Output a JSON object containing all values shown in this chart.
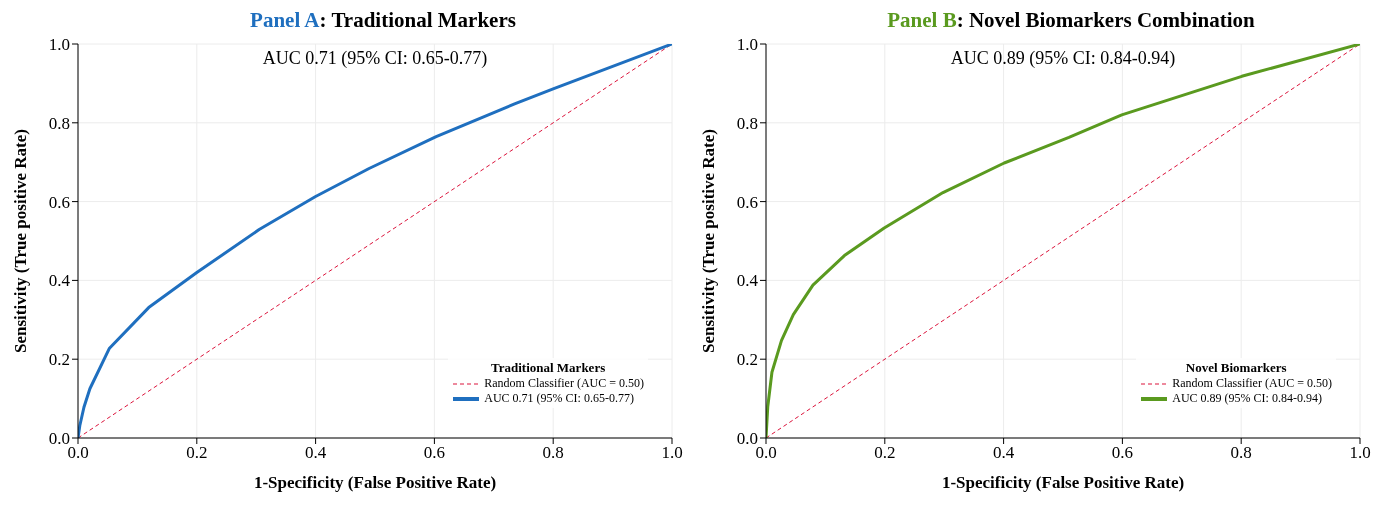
{
  "chart_data": [
    {
      "type": "line",
      "title": "Panel A: Traditional Markers",
      "xlabel": "1-Specificity (False Positive Rate)",
      "ylabel": "Sensitivity (True positive Rate)",
      "legend_title": "Traditional Markers",
      "annotations": [
        "AUC 0.71 (95% CI: 0.65-0.77)"
      ],
      "xlim": [
        0,
        1
      ],
      "ylim": [
        0,
        1
      ],
      "xticks": [
        {
          "value": 0,
          "label": "0.0"
        },
        {
          "value": 0.2,
          "label": "0.2"
        },
        {
          "value": 0.4,
          "label": "0.4"
        },
        {
          "value": 0.6,
          "label": "0.6"
        },
        {
          "value": 0.8,
          "label": "0.8"
        },
        {
          "value": 1,
          "label": "1.0"
        }
      ],
      "yticks": [
        {
          "value": 0,
          "label": "0.0"
        },
        {
          "value": 0.2,
          "label": "0.2"
        },
        {
          "value": 0.4,
          "label": "0.4"
        },
        {
          "value": 0.6,
          "label": "0.6"
        },
        {
          "value": 0.8,
          "label": "0.8"
        },
        {
          "value": 1,
          "label": "1.0"
        }
      ],
      "grid": true,
      "legend": "bottom right",
      "marker": "none",
      "series": [
        {
          "name": "Random Classifier (AUC = 0.50)",
          "color": "#dc143c",
          "line_style": "dashed",
          "x": [
            0,
            1
          ],
          "values": [
            0,
            1
          ]
        },
        {
          "name": "AUC 0.71 (95% CI: 0.65-0.77)",
          "color": "#1f6fbf",
          "line_style": "solid",
          "x": [
            0,
            0.003,
            0.01,
            0.02,
            0.053,
            0.119,
            0.2,
            0.305,
            0.4,
            0.49,
            0.603,
            0.735,
            0.801,
            1
          ],
          "values": [
            0,
            0.031,
            0.078,
            0.125,
            0.228,
            0.331,
            0.42,
            0.529,
            0.613,
            0.684,
            0.765,
            0.848,
            0.887,
            1
          ]
        }
      ]
    },
    {
      "type": "line",
      "title": "Panel B: Novel Biomarkers Combination",
      "xlabel": "1-Specificity (False Positive Rate)",
      "ylabel": "Sensitivity (True positive Rate)",
      "legend_title": "Novel Biomarkers",
      "annotations": [
        "AUC 0.89 (95% CI: 0.84-0.94)"
      ],
      "xlim": [
        0,
        1
      ],
      "ylim": [
        0,
        1
      ],
      "xticks": [
        {
          "value": 0,
          "label": "0.0"
        },
        {
          "value": 0.2,
          "label": "0.2"
        },
        {
          "value": 0.4,
          "label": "0.4"
        },
        {
          "value": 0.6,
          "label": "0.6"
        },
        {
          "value": 0.8,
          "label": "0.8"
        },
        {
          "value": 1,
          "label": "1.0"
        }
      ],
      "yticks": [
        {
          "value": 0,
          "label": "0.0"
        },
        {
          "value": 0.2,
          "label": "0.2"
        },
        {
          "value": 0.4,
          "label": "0.4"
        },
        {
          "value": 0.6,
          "label": "0.6"
        },
        {
          "value": 0.8,
          "label": "0.8"
        },
        {
          "value": 1,
          "label": "1.0"
        }
      ],
      "grid": true,
      "legend": "bottom right",
      "marker": "none",
      "series": [
        {
          "name": "Random Classifier (AUC = 0.50)",
          "color": "#dc143c",
          "line_style": "dashed",
          "x": [
            0,
            1
          ],
          "values": [
            0,
            1
          ]
        },
        {
          "name": "AUC 0.89 (95% CI: 0.84-0.94)",
          "color": "#5a9a1f",
          "line_style": "solid",
          "x": [
            0,
            0.003,
            0.01,
            0.026,
            0.046,
            0.079,
            0.132,
            0.199,
            0.298,
            0.401,
            0.51,
            0.599,
            0.801,
            1
          ],
          "values": [
            0,
            0.08,
            0.167,
            0.247,
            0.313,
            0.388,
            0.463,
            0.533,
            0.623,
            0.698,
            0.763,
            0.82,
            0.918,
            1
          ]
        }
      ]
    }
  ]
}
